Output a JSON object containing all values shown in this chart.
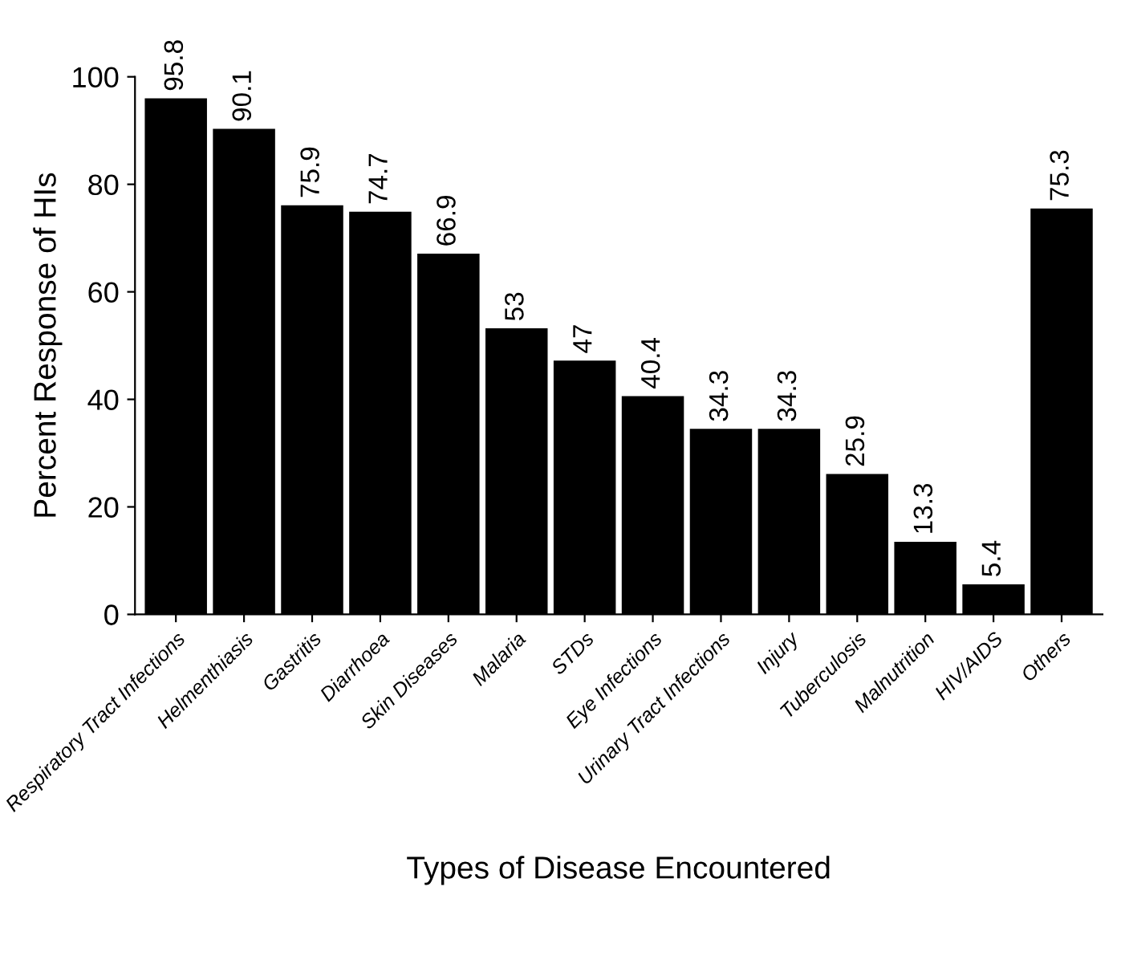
{
  "chart_data": {
    "type": "bar",
    "xlabel": "Types of Disease Encountered",
    "ylabel": "Percent Response of HIs",
    "categories": [
      "Respiratory Tract Infections",
      "Helmenthiasis",
      "Gastritis",
      "Diarrhoea",
      "Skin Diseases",
      "Malaria",
      "STDs",
      "Eye Infections",
      "Urinary Tract Infections",
      "Injury",
      "Tuberculosis",
      "Malnutrition",
      "HIV/AIDS",
      "Others"
    ],
    "values": [
      95.8,
      90.1,
      75.9,
      74.7,
      66.9,
      53,
      47,
      40.4,
      34.3,
      34.3,
      25.9,
      13.3,
      5.4,
      75.3
    ],
    "color": "#000000",
    "ylim": [
      0,
      100
    ],
    "yticks": [
      0,
      20,
      40,
      60,
      80,
      100
    ],
    "data_labels": true,
    "grid": false,
    "legend": false
  }
}
